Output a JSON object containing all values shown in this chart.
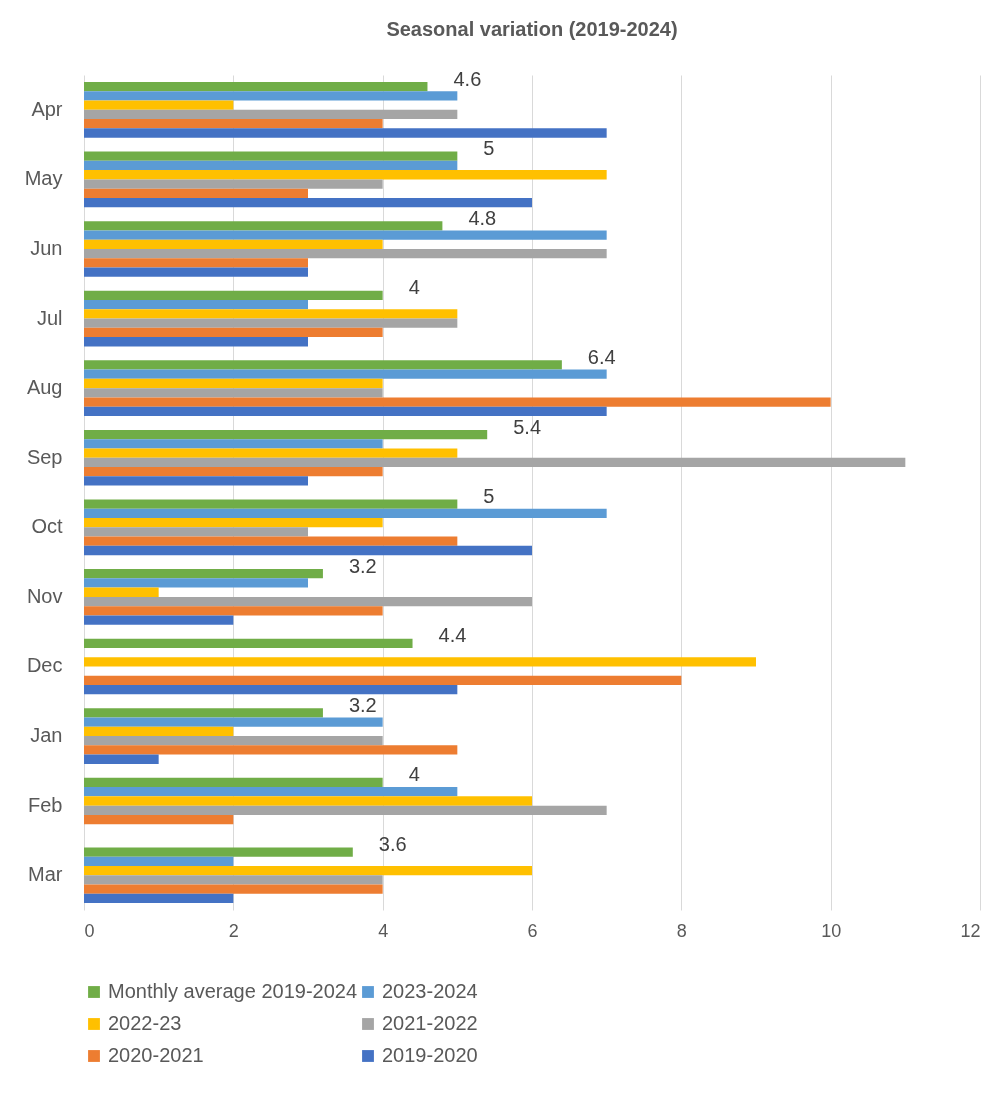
{
  "chart_data": {
    "type": "bar",
    "orientation": "horizontal",
    "title": "Seasonal variation (2019-2024)",
    "categories": [
      "Apr",
      "May",
      "Jun",
      "Jul",
      "Aug",
      "Sep",
      "Oct",
      "Nov",
      "Dec",
      "Jan",
      "Feb",
      "Mar"
    ],
    "xlim": [
      0,
      12
    ],
    "xticks": [
      0,
      2,
      4,
      6,
      8,
      10,
      12
    ],
    "grid": "x",
    "legend": "bottom",
    "series": [
      {
        "name": "Monthly average 2019-2024",
        "color": "#70ad47",
        "values": [
          4.6,
          5,
          4.8,
          4,
          6.4,
          5.4,
          5,
          3.2,
          4.4,
          3.2,
          4,
          3.6
        ],
        "value_labels": [
          "4.6",
          "5",
          "4.8",
          "4",
          "6.4",
          "5.4",
          "5",
          "3.2",
          "4.4",
          "3.2",
          "4",
          "3.6"
        ]
      },
      {
        "name": "2023-2024",
        "color": "#5b9bd5",
        "values": [
          5,
          5,
          7,
          3,
          7,
          4,
          7,
          3,
          0,
          4,
          5,
          2
        ]
      },
      {
        "name": "2022-23",
        "color": "#ffc000",
        "values": [
          2,
          7,
          4,
          5,
          4,
          5,
          4,
          1,
          9,
          2,
          6,
          6
        ]
      },
      {
        "name": "2021-2022",
        "color": "#a5a5a5",
        "values": [
          5,
          4,
          7,
          5,
          4,
          11,
          3,
          6,
          0,
          4,
          7,
          4
        ]
      },
      {
        "name": "2020-2021",
        "color": "#ed7d31",
        "values": [
          4,
          3,
          3,
          4,
          10,
          4,
          5,
          4,
          8,
          5,
          2,
          4
        ]
      },
      {
        "name": "2019-2020",
        "color": "#4472c4",
        "values": [
          7,
          6,
          3,
          3,
          7,
          3,
          6,
          2,
          5,
          1,
          0,
          2
        ]
      }
    ]
  }
}
